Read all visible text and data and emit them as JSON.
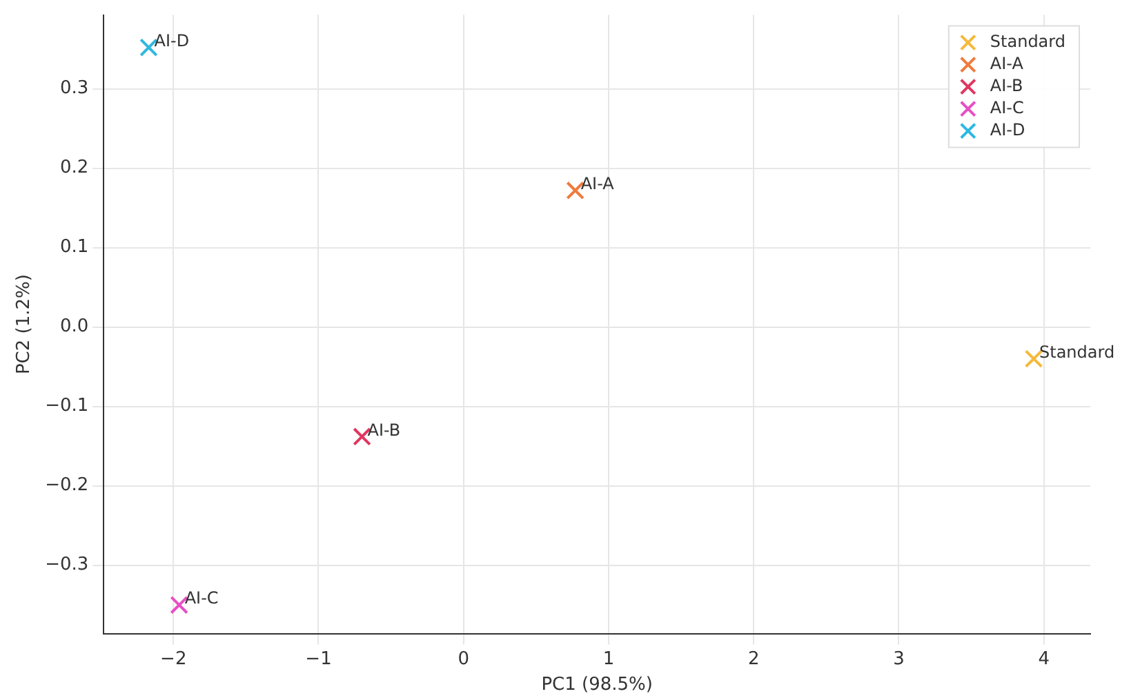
{
  "chart_data": {
    "type": "scatter",
    "xlabel": "PC1 (98.5%)",
    "ylabel": "PC2 (1.2%)",
    "xlim": [
      -2.48,
      4.32
    ],
    "ylim": [
      -0.386,
      0.393
    ],
    "xticks": [
      {
        "value": -2,
        "label": "−2"
      },
      {
        "value": -1,
        "label": "−1"
      },
      0,
      1,
      2,
      3,
      4
    ],
    "yticks": [
      {
        "value": -0.3,
        "label": "−0.3"
      },
      {
        "value": -0.2,
        "label": "−0.2"
      },
      {
        "value": -0.1,
        "label": "−0.1"
      },
      {
        "value": 0,
        "label": "0.0"
      },
      0.1,
      0.2,
      0.3
    ],
    "grid": true,
    "legend": "top right",
    "marker": "cross",
    "series": [
      {
        "name": "Standard",
        "color": "#f5b93b",
        "x": [
          3.93
        ],
        "values": [
          -0.04
        ]
      },
      {
        "name": "AI-A",
        "color": "#f07a3c",
        "x": [
          0.77
        ],
        "values": [
          0.172
        ]
      },
      {
        "name": "AI-B",
        "color": "#e0365f",
        "x": [
          -0.7
        ],
        "values": [
          -0.138
        ]
      },
      {
        "name": "AI-C",
        "color": "#e64fc4",
        "x": [
          -1.96
        ],
        "values": [
          -0.35
        ]
      },
      {
        "name": "AI-D",
        "color": "#2db8e0",
        "x": [
          -2.17
        ],
        "values": [
          0.352
        ]
      }
    ]
  }
}
